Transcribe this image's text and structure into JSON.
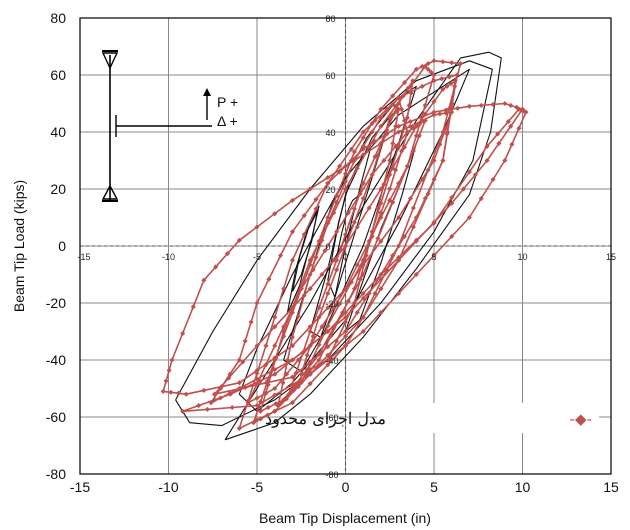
{
  "chart_data": {
    "type": "line",
    "xlabel": "Beam Tip Displacement (in)",
    "ylabel": "Beam Tip Load (kips)",
    "xlim": [
      -15,
      15
    ],
    "ylim": [
      -80,
      80
    ],
    "x_ticks": [
      -15,
      -10,
      -5,
      0,
      5,
      10,
      15
    ],
    "y_ticks": [
      -80,
      -60,
      -40,
      -20,
      0,
      20,
      40,
      60,
      80
    ],
    "inner_x_tick_labels": [
      "-15",
      "-10",
      "-5",
      "0",
      "5",
      "10",
      "15"
    ],
    "inner_y_tick_labels": [
      "80",
      "60",
      "40",
      "20",
      "0",
      "-20",
      "-40",
      "-60",
      "-80"
    ],
    "grid": true,
    "schematic": {
      "load_label": "P +",
      "disp_label": "Δ +"
    },
    "legend": {
      "position": "bottom-right",
      "marker": "-◆-",
      "text": "مدل اجزای محدود"
    },
    "colors": {
      "experiment": "#111111",
      "fem": "#c0504d",
      "grid": "#888888"
    },
    "series": [
      {
        "loops": [
          [
            [
              -0.5,
              -4
            ],
            [
              -0.2,
              5
            ],
            [
              0.1,
              12
            ],
            [
              0.4,
              16
            ],
            [
              0.8,
              18
            ],
            [
              0.2,
              8
            ],
            [
              -0.3,
              -2
            ],
            [
              -0.5,
              -4
            ]
          ],
          [
            [
              -1.0,
              -12
            ],
            [
              -0.4,
              8
            ],
            [
              0.2,
              22
            ],
            [
              0.9,
              31
            ],
            [
              1.4,
              34
            ],
            [
              0.8,
              20
            ],
            [
              0.0,
              0
            ],
            [
              -0.6,
              -18
            ],
            [
              -1.0,
              -12
            ]
          ],
          [
            [
              -3.0,
              -16
            ],
            [
              -2.6,
              -4
            ],
            [
              -2.1,
              6
            ],
            [
              -1.6,
              12
            ],
            [
              -1.9,
              2
            ],
            [
              -2.5,
              -10
            ],
            [
              -3.0,
              -16
            ]
          ],
          [
            [
              -3.3,
              -24
            ],
            [
              -2.8,
              -8
            ],
            [
              -2.2,
              5
            ],
            [
              -1.5,
              14
            ],
            [
              -1.9,
              3
            ],
            [
              -2.6,
              -14
            ],
            [
              -3.3,
              -24
            ]
          ],
          [
            [
              -2.0,
              -30
            ],
            [
              -1.0,
              -8
            ],
            [
              0.0,
              18
            ],
            [
              1.5,
              38
            ],
            [
              2.6,
              46
            ],
            [
              2.0,
              34
            ],
            [
              0.8,
              10
            ],
            [
              -0.6,
              -18
            ],
            [
              -1.4,
              -32
            ],
            [
              -2.0,
              -30
            ]
          ],
          [
            [
              -3.5,
              -40
            ],
            [
              -2.4,
              -18
            ],
            [
              -0.8,
              14
            ],
            [
              1.2,
              38
            ],
            [
              3.0,
              52
            ],
            [
              4.0,
              56
            ],
            [
              3.0,
              36
            ],
            [
              1.0,
              0
            ],
            [
              -1.2,
              -30
            ],
            [
              -2.5,
              -44
            ],
            [
              -3.5,
              -40
            ]
          ],
          [
            [
              -6.0,
              -52
            ],
            [
              -5.0,
              -36
            ],
            [
              -3.0,
              -10
            ],
            [
              0.0,
              24
            ],
            [
              3.0,
              46
            ],
            [
              6.0,
              58
            ],
            [
              7.0,
              62
            ],
            [
              5.5,
              40
            ],
            [
              3.0,
              8
            ],
            [
              0.0,
              -26
            ],
            [
              -3.0,
              -48
            ],
            [
              -5.0,
              -58
            ],
            [
              -6.0,
              -52
            ]
          ],
          [
            [
              -9.6,
              -54
            ],
            [
              -7.5,
              -30
            ],
            [
              -5.0,
              -5
            ],
            [
              -2.0,
              20
            ],
            [
              1.0,
              42
            ],
            [
              4.0,
              58
            ],
            [
              7.0,
              65
            ],
            [
              8.3,
              62
            ],
            [
              7.2,
              30
            ],
            [
              5.0,
              5
            ],
            [
              2.0,
              -20
            ],
            [
              -1.0,
              -40
            ],
            [
              -4.0,
              -54
            ],
            [
              -7.0,
              -63
            ],
            [
              -8.8,
              -62
            ],
            [
              -9.6,
              -54
            ]
          ],
          [
            [
              -6.8,
              -68
            ],
            [
              -5.0,
              -50
            ],
            [
              -2.0,
              -20
            ],
            [
              1.0,
              14
            ],
            [
              4.0,
              44
            ],
            [
              6.5,
              66
            ],
            [
              8.1,
              68
            ],
            [
              8.8,
              66
            ],
            [
              8.2,
              40
            ],
            [
              7.0,
              18
            ],
            [
              4.0,
              -8
            ],
            [
              1.0,
              -32
            ],
            [
              -2.0,
              -52
            ],
            [
              -4.0,
              -62
            ],
            [
              -6.8,
              -68
            ]
          ],
          [
            [
              0.0,
              -30
            ],
            [
              1.0,
              -12
            ],
            [
              2.0,
              6
            ],
            [
              3.5,
              28
            ],
            [
              4.0,
              36
            ],
            [
              3.2,
              18
            ],
            [
              2.0,
              -6
            ],
            [
              0.8,
              -26
            ],
            [
              0.0,
              -30
            ]
          ]
        ]
      },
      {
        "loops": [
          [
            [
              -5.2,
              -62
            ],
            [
              -4.0,
              -40
            ],
            [
              -2.5,
              -15
            ],
            [
              -1.0,
              10
            ],
            [
              0.5,
              33
            ],
            [
              2.0,
              48
            ],
            [
              4.0,
              62
            ],
            [
              5.0,
              65
            ],
            [
              6.5,
              64
            ],
            [
              5.5,
              40
            ],
            [
              3.0,
              0
            ],
            [
              1.0,
              -25
            ],
            [
              -2.0,
              -45
            ],
            [
              -4.0,
              -58
            ],
            [
              -5.2,
              -62
            ]
          ],
          [
            [
              -6.0,
              -64
            ],
            [
              -4.5,
              -35
            ],
            [
              -3.0,
              -5
            ],
            [
              -1.0,
              22
            ],
            [
              1.0,
              40
            ],
            [
              3.0,
              52
            ],
            [
              5.0,
              58
            ],
            [
              6.3,
              60
            ],
            [
              5.5,
              30
            ],
            [
              3.0,
              -5
            ],
            [
              0.0,
              -35
            ],
            [
              -3.0,
              -55
            ],
            [
              -6.0,
              -64
            ]
          ],
          [
            [
              -4.8,
              -58
            ],
            [
              -3.5,
              -30
            ],
            [
              -2.0,
              -5
            ],
            [
              0.0,
              20
            ],
            [
              2.0,
              42
            ],
            [
              4.5,
              63
            ],
            [
              5.0,
              60
            ],
            [
              3.5,
              28
            ],
            [
              1.0,
              -10
            ],
            [
              -1.5,
              -38
            ],
            [
              -3.5,
              -54
            ],
            [
              -4.8,
              -58
            ]
          ],
          [
            [
              -10.3,
              -51
            ],
            [
              -9.8,
              -40
            ],
            [
              -8.0,
              -12
            ],
            [
              -6.0,
              2
            ],
            [
              -3.0,
              16
            ],
            [
              0.0,
              28
            ],
            [
              3.0,
              40
            ],
            [
              5.0,
              46
            ],
            [
              6.0,
              47
            ],
            [
              5.0,
              30
            ],
            [
              3.0,
              10
            ],
            [
              0.0,
              -15
            ],
            [
              -3.0,
              -35
            ],
            [
              -6.0,
              -48
            ],
            [
              -9.0,
              -52
            ],
            [
              -10.3,
              -51
            ]
          ],
          [
            [
              -9.2,
              -58
            ],
            [
              -6.5,
              -52
            ],
            [
              -4.0,
              -45
            ],
            [
              -1.0,
              -30
            ],
            [
              2.0,
              -10
            ],
            [
              5.0,
              8
            ],
            [
              8.0,
              35
            ],
            [
              9.8,
              48
            ],
            [
              10.2,
              47
            ],
            [
              9.0,
              30
            ],
            [
              7.0,
              10
            ],
            [
              4.0,
              -10
            ],
            [
              1.0,
              -30
            ],
            [
              -2.0,
              -45
            ],
            [
              -5.0,
              -56
            ],
            [
              -9.2,
              -58
            ]
          ],
          [
            [
              -7.6,
              -55
            ],
            [
              -6.0,
              -40
            ],
            [
              -5.0,
              -20
            ],
            [
              -3.0,
              5
            ],
            [
              -1.0,
              22
            ],
            [
              1.0,
              34
            ],
            [
              3.0,
              42
            ],
            [
              5.0,
              47
            ],
            [
              7.0,
              49
            ],
            [
              9.0,
              50
            ],
            [
              10.0,
              48
            ],
            [
              8.0,
              30
            ],
            [
              6.0,
              15
            ],
            [
              3.0,
              -5
            ],
            [
              0.0,
              -25
            ],
            [
              -3.0,
              -40
            ],
            [
              -6.0,
              -50
            ],
            [
              -7.6,
              -55
            ]
          ],
          [
            [
              -7.4,
              -52
            ],
            [
              -5.0,
              -35
            ],
            [
              -2.0,
              -15
            ],
            [
              0.0,
              0
            ],
            [
              2.0,
              20
            ],
            [
              4.0,
              42
            ],
            [
              5.5,
              55
            ],
            [
              6.2,
              58
            ],
            [
              5.5,
              30
            ],
            [
              4.0,
              10
            ],
            [
              2.0,
              -10
            ],
            [
              0.0,
              -30
            ],
            [
              -3.0,
              -46
            ],
            [
              -7.4,
              -52
            ]
          ],
          [
            [
              -3.8,
              -56
            ],
            [
              -3.0,
              -32
            ],
            [
              -2.0,
              -10
            ],
            [
              -1.0,
              8
            ],
            [
              0.5,
              30
            ],
            [
              2.0,
              45
            ],
            [
              3.0,
              52
            ],
            [
              3.5,
              40
            ],
            [
              2.5,
              20
            ],
            [
              1.0,
              -5
            ],
            [
              -1.0,
              -28
            ],
            [
              -2.5,
              -48
            ],
            [
              -3.8,
              -56
            ]
          ],
          [
            [
              -2.5,
              -45
            ],
            [
              -1.5,
              -25
            ],
            [
              0.0,
              0
            ],
            [
              1.5,
              25
            ],
            [
              2.5,
              45
            ],
            [
              3.0,
              48
            ],
            [
              2.5,
              30
            ],
            [
              1.5,
              5
            ],
            [
              0.5,
              -20
            ],
            [
              -1.0,
              -40
            ],
            [
              -2.5,
              -45
            ]
          ],
          [
            [
              -3.2,
              -52
            ],
            [
              -2.0,
              -30
            ],
            [
              -0.5,
              -5
            ],
            [
              1.0,
              22
            ],
            [
              3.0,
              50
            ],
            [
              3.8,
              58
            ],
            [
              3.5,
              45
            ],
            [
              2.0,
              15
            ],
            [
              0.5,
              -15
            ],
            [
              -1.5,
              -40
            ],
            [
              -3.2,
              -52
            ]
          ],
          [
            [
              -5.5,
              -55
            ],
            [
              -4.0,
              -35
            ],
            [
              -2.5,
              -15
            ],
            [
              -0.5,
              5
            ],
            [
              1.5,
              25
            ],
            [
              3.5,
              40
            ],
            [
              4.5,
              44
            ],
            [
              3.5,
              28
            ],
            [
              2.0,
              10
            ],
            [
              0.0,
              -15
            ],
            [
              -2.0,
              -35
            ],
            [
              -4.0,
              -50
            ],
            [
              -5.5,
              -55
            ]
          ]
        ]
      }
    ]
  }
}
